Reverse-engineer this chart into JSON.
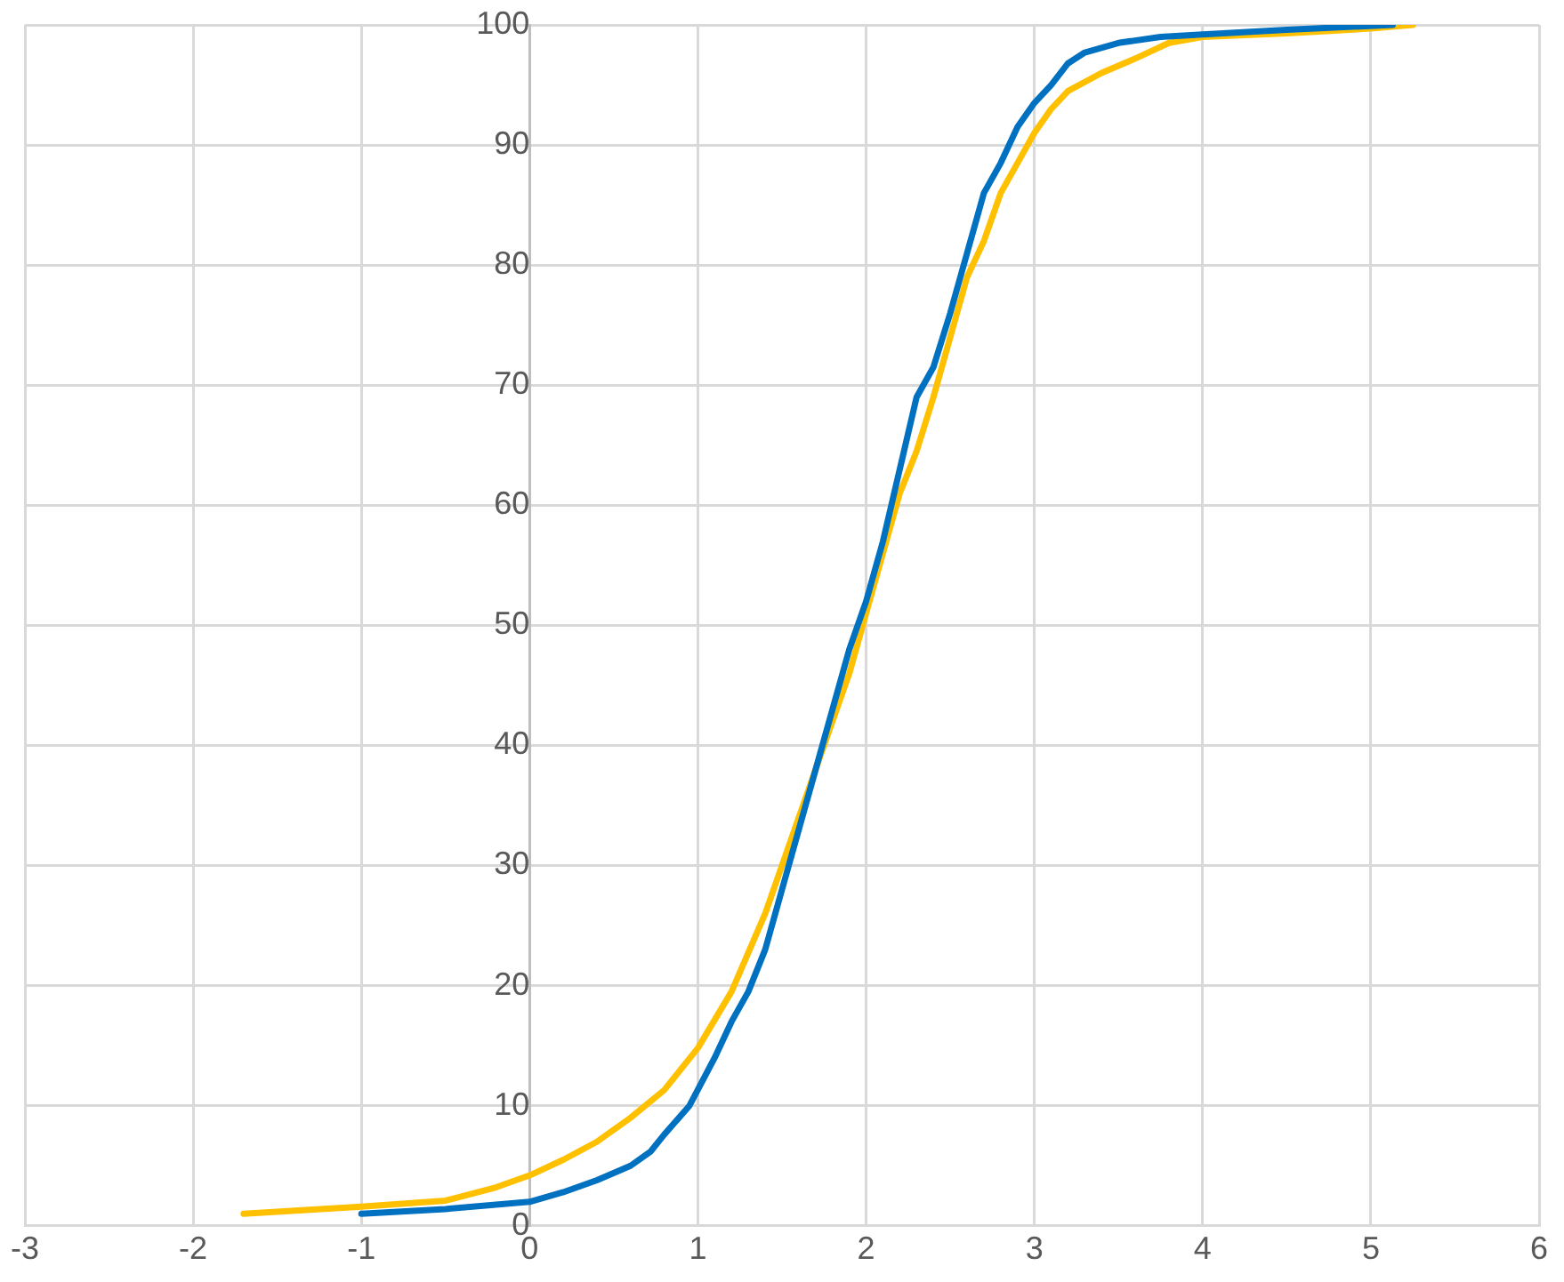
{
  "chart_data": {
    "type": "line",
    "xlim": [
      -3,
      6
    ],
    "xticks": [
      -3,
      -2,
      -1,
      0,
      1,
      2,
      3,
      4,
      5,
      6
    ],
    "ylim": [
      0,
      100
    ],
    "yticks": [
      0,
      10,
      20,
      30,
      40,
      50,
      60,
      70,
      80,
      90,
      100
    ],
    "grid": true,
    "legend": false,
    "marker": "none",
    "line_style": "solid",
    "series": [
      {
        "color": "#ffc000",
        "x": [
          -1.7,
          -1,
          -0.5,
          -0.2,
          0,
          0.2,
          0.4,
          0.6,
          0.8,
          1,
          1.2,
          1.4,
          1.6,
          1.8,
          1.9,
          2,
          2.1,
          2.2,
          2.3,
          2.4,
          2.5,
          2.6,
          2.7,
          2.8,
          2.9,
          3,
          3.1,
          3.2,
          3.4,
          3.6,
          3.8,
          4,
          4.5,
          5,
          5.25
        ],
        "values": [
          1,
          1.6,
          2.1,
          3.2,
          4.2,
          5.5,
          7,
          9,
          11.3,
          14.8,
          19.5,
          26,
          34,
          42,
          46,
          51,
          56,
          61,
          64.5,
          69,
          74,
          79,
          82,
          86,
          88.5,
          91,
          93,
          94.5,
          96,
          97.2,
          98.5,
          99,
          99.3,
          99.7,
          100
        ]
      },
      {
        "color": "#0070c0",
        "x": [
          -1,
          -0.5,
          0,
          0.2,
          0.4,
          0.6,
          0.72,
          0.8,
          0.95,
          1.1,
          1.2,
          1.3,
          1.4,
          1.5,
          1.6,
          1.7,
          1.8,
          1.9,
          2,
          2.1,
          2.2,
          2.3,
          2.4,
          2.5,
          2.6,
          2.7,
          2.8,
          2.9,
          3,
          3.1,
          3.2,
          3.3,
          3.5,
          3.75,
          4,
          4.5,
          5.13
        ],
        "values": [
          1,
          1.4,
          2,
          2.8,
          3.8,
          5,
          6.2,
          7.6,
          10,
          14,
          17,
          19.5,
          23,
          28,
          33,
          38,
          43,
          48,
          52,
          57,
          63,
          69,
          71.5,
          76,
          81,
          86,
          88.5,
          91.5,
          93.5,
          95,
          96.8,
          97.7,
          98.5,
          99,
          99.2,
          99.6,
          100
        ]
      }
    ]
  }
}
